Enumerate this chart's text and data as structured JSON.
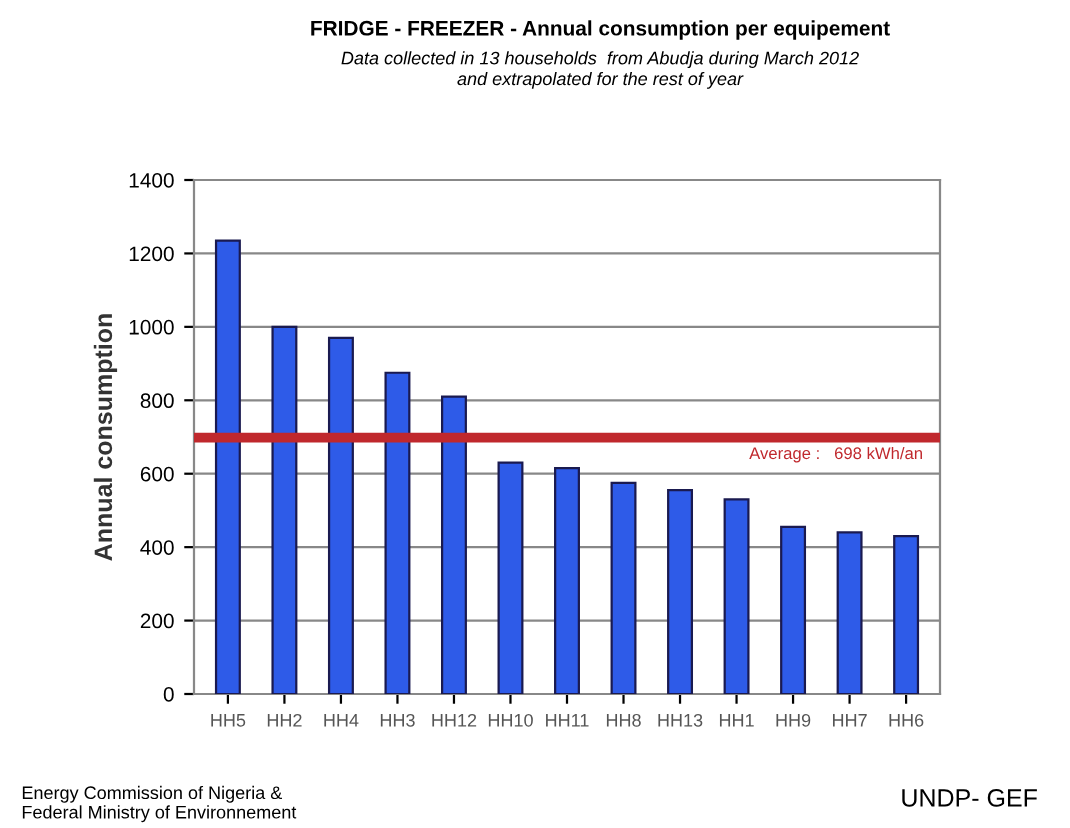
{
  "chart_data": {
    "type": "bar",
    "title": "FRIDGE - FREEZER - Annual consumption per equipement",
    "subtitle": "Data collected in 13 households  from Abudja during March 2012\nand extrapolated for the rest of year",
    "ylabel": "Annual consumption",
    "categories": [
      "HH5",
      "HH2",
      "HH4",
      "HH3",
      "HH12",
      "HH10",
      "HH11",
      "HH8",
      "HH13",
      "HH1",
      "HH9",
      "HH7",
      "HH6"
    ],
    "values": [
      1235,
      1000,
      970,
      875,
      810,
      630,
      615,
      575,
      555,
      530,
      455,
      440,
      430
    ],
    "color": "#2e5be8",
    "ylim": [
      0,
      1400
    ],
    "yticks": [
      0,
      200,
      400,
      600,
      800,
      1000,
      1200,
      1400
    ],
    "grid": "y",
    "ref_lines": [
      {
        "axis": "y",
        "value": 698,
        "label": "Average :   698 kWh/an",
        "color": "#c0282d"
      }
    ],
    "annotations": [
      "Energy Commission of Nigeria &\nFederal Ministry of Environnement",
      "UNDP- GEF"
    ]
  }
}
